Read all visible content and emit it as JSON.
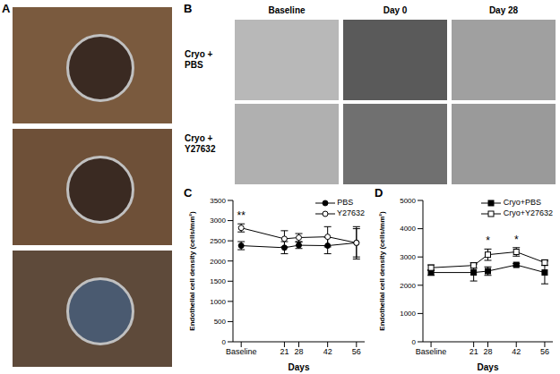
{
  "panel_labels": [
    "A",
    "B",
    "C",
    "D"
  ],
  "image_grid": {
    "columns": [
      "Baseline",
      "Day 0",
      "Day 28"
    ],
    "rows": [
      "Cryo + PBS",
      "Cryo + Y27632"
    ]
  },
  "chart_data": [
    {
      "type": "line",
      "xlabel": "Days",
      "ylabel": "Endothelial cell density (cells/mm²)",
      "x": [
        0,
        21,
        28,
        42,
        56
      ],
      "xlim": [
        -4,
        60
      ],
      "xticks": [
        {
          "value": 0,
          "label": "Baseline"
        },
        21,
        28,
        42,
        56
      ],
      "ylim": [
        0,
        3500
      ],
      "yticks": [
        0,
        500,
        1000,
        1500,
        2000,
        2500,
        3000,
        3500
      ],
      "legend": "upper right",
      "series": [
        {
          "name": "PBS",
          "color": "#000000",
          "marker": "circle",
          "values": [
            2380,
            2330,
            2390,
            2380,
            2450
          ],
          "errors": [
            100,
            150,
            80,
            200,
            350
          ]
        },
        {
          "name": "Y27632",
          "color": "#000000",
          "marker": "circle_open",
          "values": [
            2820,
            2550,
            2580,
            2600,
            2450
          ],
          "errors": [
            100,
            200,
            100,
            250,
            400
          ]
        }
      ],
      "annotations": [
        {
          "x": 0,
          "text": "**"
        }
      ]
    },
    {
      "type": "line",
      "xlabel": "Days",
      "ylabel": "Endothelial cell density (cells/mm²)",
      "x": [
        0,
        21,
        28,
        42,
        56
      ],
      "xlim": [
        -4,
        60
      ],
      "xticks": [
        {
          "value": 0,
          "label": "Baseline"
        },
        21,
        28,
        42,
        56
      ],
      "ylim": [
        0,
        5000
      ],
      "yticks": [
        0,
        1000,
        2000,
        3000,
        4000,
        5000
      ],
      "legend": "upper right",
      "series": [
        {
          "name": "Cryo+PBS",
          "color": "#000000",
          "marker": "square",
          "values": [
            2450,
            2450,
            2500,
            2720,
            2450
          ],
          "errors": [
            100,
            300,
            150,
            50,
            400
          ]
        },
        {
          "name": "Cryo+Y27632",
          "color": "#000000",
          "marker": "square_open",
          "values": [
            2620,
            2700,
            3080,
            3180,
            2800
          ],
          "errors": [
            100,
            100,
            200,
            150,
            100
          ]
        }
      ],
      "annotations": [
        {
          "x": 28,
          "text": "*"
        },
        {
          "x": 42,
          "text": "*"
        }
      ]
    }
  ]
}
